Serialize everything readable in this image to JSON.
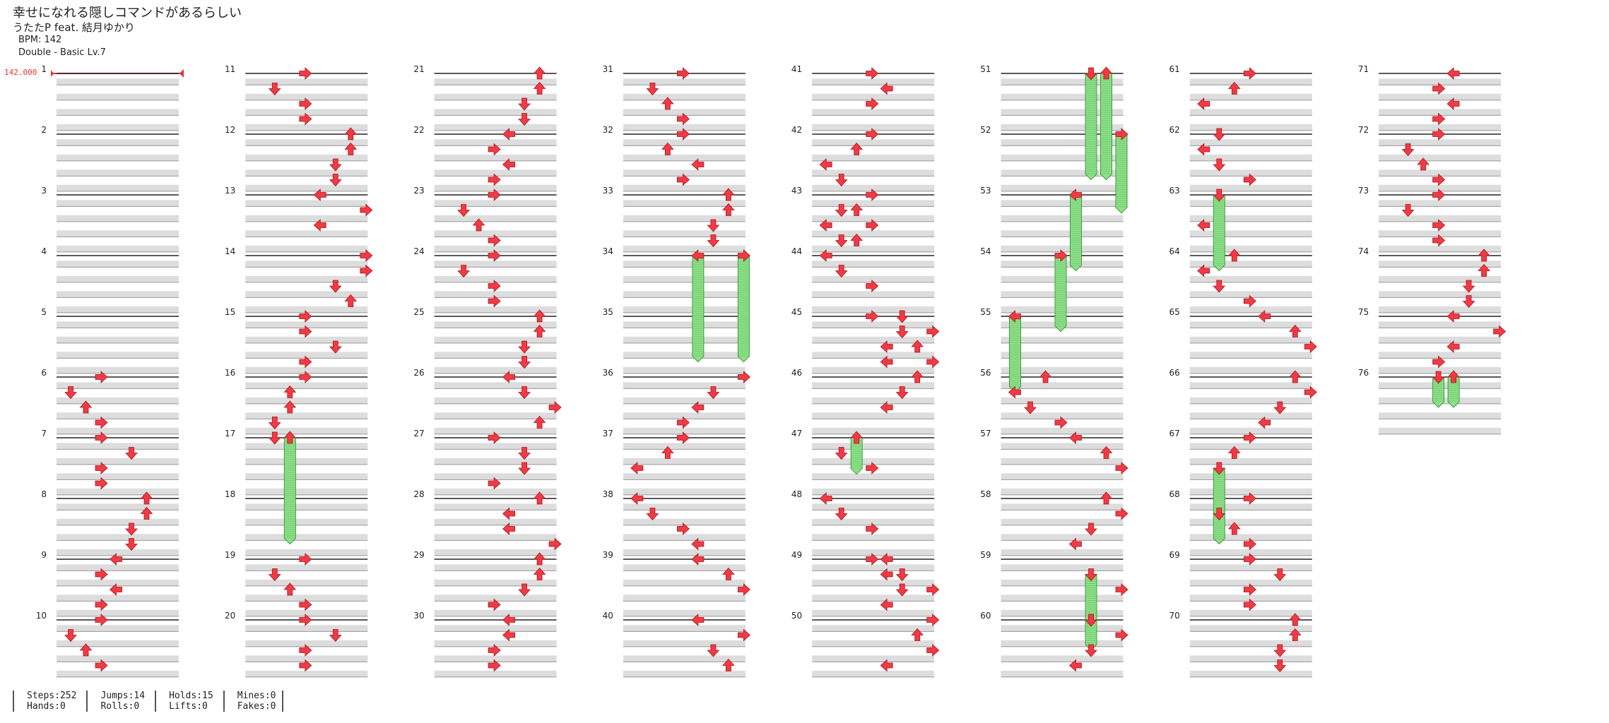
{
  "song": {
    "title": "幸せになれる隠しコマンドがあるらしい",
    "artist": "うたたP feat. 結月ゆかり",
    "bpm": "BPM: 142",
    "difficulty": "Double - Basic  Lv.7"
  },
  "bpm_change": "142.000",
  "stats": [
    [
      "Steps:252",
      "Hands:0"
    ],
    [
      "Jumps:14",
      "Rolls:0"
    ],
    [
      "Holds:15",
      "Lifts:0"
    ],
    [
      "Mines:0",
      "Fakes:0"
    ]
  ],
  "measures": [
    1,
    2,
    3,
    4,
    5,
    6,
    7,
    8,
    9,
    10,
    11,
    12,
    13,
    14,
    15,
    16,
    17,
    18,
    19,
    20,
    21,
    22,
    23,
    24,
    25,
    26,
    27,
    28,
    29,
    30,
    31,
    32,
    33,
    34,
    35,
    36,
    37,
    38,
    39,
    40,
    41,
    42,
    43,
    44,
    45,
    46,
    47,
    48,
    49,
    50,
    51,
    52,
    53,
    54,
    55,
    56,
    57,
    58,
    59,
    60,
    61,
    62,
    63,
    64,
    65,
    66,
    67,
    68,
    69,
    70,
    71,
    72,
    73,
    74,
    75,
    76
  ],
  "colors": {
    "arrow": "#ee3b45",
    "hold": "#8fe08a",
    "bpm": "#e33333"
  },
  "notes": [
    [
      6,
      0,
      2,
      "R"
    ],
    [
      6,
      1,
      0,
      "D"
    ],
    [
      6,
      2,
      1,
      "U"
    ],
    [
      6,
      3,
      2,
      "R"
    ],
    [
      6,
      4,
      2,
      "R"
    ],
    [
      6,
      5,
      4,
      "D"
    ],
    [
      6,
      6,
      2,
      "R"
    ],
    [
      6,
      7,
      2,
      "R"
    ],
    [
      8,
      0,
      5,
      "U"
    ],
    [
      8,
      1,
      5,
      "U"
    ],
    [
      8,
      2,
      4,
      "D"
    ],
    [
      8,
      3,
      4,
      "D"
    ],
    [
      9,
      0,
      3,
      "L"
    ],
    [
      9,
      1,
      2,
      "R"
    ],
    [
      9,
      2,
      3,
      "L"
    ],
    [
      9,
      3,
      2,
      "R"
    ],
    [
      10,
      0,
      2,
      "R"
    ],
    [
      10,
      1,
      0,
      "D"
    ],
    [
      10,
      2,
      1,
      "U"
    ],
    [
      10,
      3,
      2,
      "R"
    ],
    [
      11,
      0,
      3,
      "R"
    ],
    [
      11,
      1,
      1,
      "D"
    ],
    [
      11,
      2,
      3,
      "R"
    ],
    [
      11,
      3,
      3,
      "R"
    ],
    [
      12,
      0,
      6,
      "U"
    ],
    [
      12,
      1,
      6,
      "U"
    ],
    [
      12,
      2,
      5,
      "D"
    ],
    [
      12,
      3,
      5,
      "D"
    ],
    [
      13,
      0,
      4,
      "L"
    ],
    [
      13,
      1,
      7,
      "R"
    ],
    [
      13,
      2,
      4,
      "L"
    ],
    [
      14,
      0,
      7,
      "R"
    ],
    [
      14,
      1,
      7,
      "R"
    ],
    [
      14,
      2,
      5,
      "D"
    ],
    [
      14,
      3,
      6,
      "U"
    ],
    [
      15,
      0,
      3,
      "R"
    ],
    [
      15,
      1,
      3,
      "R"
    ],
    [
      15,
      2,
      5,
      "D"
    ],
    [
      15,
      3,
      3,
      "R"
    ],
    [
      16,
      0,
      3,
      "R"
    ],
    [
      16,
      1,
      2,
      "U"
    ],
    [
      16,
      2,
      2,
      "U"
    ],
    [
      16,
      3,
      1,
      "D"
    ],
    [
      16,
      4,
      1,
      "D"
    ],
    [
      19,
      0,
      3,
      "R"
    ],
    [
      19,
      1,
      1,
      "D"
    ],
    [
      19,
      2,
      2,
      "U"
    ],
    [
      19,
      3,
      3,
      "R"
    ],
    [
      20,
      0,
      3,
      "R"
    ],
    [
      20,
      1,
      5,
      "D"
    ],
    [
      20,
      2,
      3,
      "R"
    ],
    [
      20,
      3,
      3,
      "R"
    ],
    [
      21,
      0,
      6,
      "U"
    ],
    [
      21,
      1,
      6,
      "U"
    ],
    [
      21,
      2,
      5,
      "D"
    ],
    [
      21,
      3,
      5,
      "D"
    ],
    [
      22,
      0,
      4,
      "L"
    ],
    [
      22,
      1,
      3,
      "R"
    ],
    [
      22,
      2,
      4,
      "L"
    ],
    [
      22,
      3,
      3,
      "R"
    ],
    [
      23,
      0,
      3,
      "R"
    ],
    [
      23,
      1,
      1,
      "D"
    ],
    [
      23,
      2,
      2,
      "U"
    ],
    [
      23,
      3,
      3,
      "R"
    ],
    [
      24,
      0,
      3,
      "R"
    ],
    [
      24,
      1,
      1,
      "D"
    ],
    [
      24,
      2,
      3,
      "R"
    ],
    [
      24,
      3,
      3,
      "R"
    ],
    [
      25,
      0,
      6,
      "U"
    ],
    [
      25,
      1,
      6,
      "U"
    ],
    [
      25,
      2,
      5,
      "D"
    ],
    [
      25,
      3,
      5,
      "D"
    ],
    [
      26,
      0,
      4,
      "L"
    ],
    [
      26,
      1,
      5,
      "D"
    ],
    [
      26,
      2,
      7,
      "R"
    ],
    [
      26,
      3,
      6,
      "U"
    ],
    [
      27,
      0,
      3,
      "R"
    ],
    [
      27,
      1,
      5,
      "D"
    ],
    [
      27,
      2,
      5,
      "D"
    ],
    [
      27,
      3,
      3,
      "R"
    ],
    [
      28,
      0,
      6,
      "U"
    ],
    [
      28,
      1,
      4,
      "L"
    ],
    [
      28,
      2,
      4,
      "L"
    ],
    [
      28,
      3,
      7,
      "R"
    ],
    [
      29,
      0,
      6,
      "U"
    ],
    [
      29,
      1,
      6,
      "U"
    ],
    [
      29,
      2,
      5,
      "D"
    ],
    [
      29,
      3,
      3,
      "R"
    ],
    [
      30,
      0,
      4,
      "L"
    ],
    [
      30,
      1,
      4,
      "L"
    ],
    [
      30,
      2,
      3,
      "R"
    ],
    [
      30,
      3,
      3,
      "R"
    ],
    [
      31,
      0,
      3,
      "R"
    ],
    [
      31,
      1,
      1,
      "D"
    ],
    [
      31,
      2,
      2,
      "U"
    ],
    [
      31,
      3,
      3,
      "R"
    ],
    [
      32,
      0,
      3,
      "R"
    ],
    [
      32,
      1,
      2,
      "U"
    ],
    [
      32,
      2,
      4,
      "L"
    ],
    [
      32,
      3,
      3,
      "R"
    ],
    [
      33,
      0,
      6,
      "U"
    ],
    [
      33,
      1,
      6,
      "U"
    ],
    [
      33,
      2,
      5,
      "D"
    ],
    [
      33,
      3,
      5,
      "D"
    ],
    [
      36,
      0,
      7,
      "R"
    ],
    [
      36,
      1,
      5,
      "D"
    ],
    [
      36,
      2,
      4,
      "L"
    ],
    [
      36,
      3,
      3,
      "R"
    ],
    [
      37,
      0,
      3,
      "R"
    ],
    [
      37,
      1,
      2,
      "U"
    ],
    [
      37,
      2,
      0,
      "L"
    ],
    [
      38,
      0,
      0,
      "L"
    ],
    [
      38,
      1,
      1,
      "D"
    ],
    [
      38,
      2,
      3,
      "R"
    ],
    [
      38,
      3,
      4,
      "L"
    ],
    [
      38,
      4,
      4,
      "L"
    ],
    [
      39,
      1,
      6,
      "U"
    ],
    [
      39,
      2,
      7,
      "R"
    ],
    [
      40,
      0,
      4,
      "L"
    ],
    [
      40,
      1,
      7,
      "R"
    ],
    [
      40,
      2,
      5,
      "D"
    ],
    [
      40,
      3,
      6,
      "U"
    ],
    [
      41,
      0,
      3,
      "R"
    ],
    [
      41,
      1,
      4,
      "L"
    ],
    [
      41,
      2,
      3,
      "R"
    ],
    [
      42,
      0,
      3,
      "R"
    ],
    [
      42,
      1,
      2,
      "U"
    ],
    [
      42,
      2,
      0,
      "L"
    ],
    [
      42,
      3,
      1,
      "D"
    ],
    [
      43,
      0,
      3,
      "R"
    ],
    [
      43,
      1,
      1,
      "D"
    ],
    [
      43,
      1,
      2,
      "U"
    ],
    [
      43,
      2,
      0,
      "L"
    ],
    [
      43,
      2,
      3,
      "R"
    ],
    [
      43,
      3,
      1,
      "D"
    ],
    [
      43,
      3,
      2,
      "U"
    ],
    [
      44,
      0,
      0,
      "L"
    ],
    [
      44,
      1,
      1,
      "D"
    ],
    [
      44,
      2,
      3,
      "R"
    ],
    [
      45,
      0,
      3,
      "R"
    ],
    [
      45,
      0,
      5,
      "D"
    ],
    [
      45,
      1,
      5,
      "D"
    ],
    [
      45,
      1,
      7,
      "R"
    ],
    [
      45,
      2,
      4,
      "L"
    ],
    [
      45,
      2,
      6,
      "U"
    ],
    [
      45,
      3,
      4,
      "L"
    ],
    [
      45,
      3,
      7,
      "R"
    ],
    [
      46,
      0,
      6,
      "U"
    ],
    [
      46,
      1,
      5,
      "D"
    ],
    [
      46,
      2,
      4,
      "L"
    ],
    [
      47,
      1,
      1,
      "D"
    ],
    [
      47,
      2,
      3,
      "R"
    ],
    [
      48,
      0,
      0,
      "L"
    ],
    [
      48,
      1,
      1,
      "D"
    ],
    [
      48,
      2,
      3,
      "R"
    ],
    [
      49,
      0,
      3,
      "R"
    ],
    [
      49,
      0,
      4,
      "L"
    ],
    [
      49,
      1,
      4,
      "L"
    ],
    [
      49,
      1,
      5,
      "D"
    ],
    [
      49,
      2,
      5,
      "D"
    ],
    [
      49,
      2,
      7,
      "R"
    ],
    [
      49,
      3,
      4,
      "L"
    ],
    [
      50,
      0,
      7,
      "R"
    ],
    [
      50,
      1,
      6,
      "U"
    ],
    [
      50,
      2,
      7,
      "R"
    ],
    [
      50,
      3,
      4,
      "L"
    ],
    [
      56,
      0,
      2,
      "U"
    ],
    [
      56,
      1,
      0,
      "L"
    ],
    [
      56,
      2,
      1,
      "D"
    ],
    [
      56,
      3,
      3,
      "R"
    ],
    [
      57,
      0,
      4,
      "L"
    ],
    [
      57,
      1,
      6,
      "U"
    ],
    [
      57,
      2,
      7,
      "R"
    ],
    [
      58,
      0,
      6,
      "U"
    ],
    [
      58,
      1,
      7,
      "R"
    ],
    [
      58,
      2,
      5,
      "D"
    ],
    [
      58,
      3,
      4,
      "L"
    ],
    [
      59,
      2,
      7,
      "R"
    ],
    [
      60,
      0,
      5,
      "D"
    ],
    [
      60,
      1,
      7,
      "R"
    ],
    [
      60,
      2,
      5,
      "D"
    ],
    [
      60,
      3,
      4,
      "L"
    ],
    [
      61,
      0,
      3,
      "R"
    ],
    [
      61,
      1,
      2,
      "U"
    ],
    [
      61,
      2,
      0,
      "L"
    ],
    [
      62,
      0,
      1,
      "D"
    ],
    [
      62,
      1,
      0,
      "L"
    ],
    [
      62,
      2,
      1,
      "D"
    ],
    [
      62,
      3,
      3,
      "R"
    ],
    [
      63,
      2,
      0,
      "L"
    ],
    [
      64,
      0,
      2,
      "U"
    ],
    [
      64,
      1,
      0,
      "L"
    ],
    [
      64,
      2,
      1,
      "D"
    ],
    [
      64,
      3,
      3,
      "R"
    ],
    [
      65,
      0,
      4,
      "L"
    ],
    [
      65,
      1,
      6,
      "U"
    ],
    [
      65,
      2,
      7,
      "R"
    ],
    [
      66,
      0,
      6,
      "U"
    ],
    [
      66,
      1,
      7,
      "R"
    ],
    [
      66,
      2,
      5,
      "D"
    ],
    [
      66,
      3,
      4,
      "L"
    ],
    [
      67,
      0,
      3,
      "R"
    ],
    [
      67,
      1,
      2,
      "U"
    ],
    [
      68,
      0,
      3,
      "R"
    ],
    [
      68,
      1,
      1,
      "D"
    ],
    [
      68,
      2,
      2,
      "U"
    ],
    [
      68,
      3,
      3,
      "R"
    ],
    [
      69,
      0,
      3,
      "R"
    ],
    [
      69,
      1,
      5,
      "D"
    ],
    [
      69,
      2,
      3,
      "R"
    ],
    [
      69,
      3,
      3,
      "R"
    ],
    [
      70,
      0,
      6,
      "U"
    ],
    [
      70,
      1,
      6,
      "U"
    ],
    [
      70,
      2,
      5,
      "D"
    ],
    [
      70,
      3,
      5,
      "D"
    ],
    [
      71,
      0,
      4,
      "L"
    ],
    [
      71,
      1,
      3,
      "R"
    ],
    [
      71,
      2,
      4,
      "L"
    ],
    [
      71,
      3,
      3,
      "R"
    ],
    [
      72,
      0,
      3,
      "R"
    ],
    [
      72,
      1,
      1,
      "D"
    ],
    [
      72,
      2,
      2,
      "U"
    ],
    [
      72,
      3,
      3,
      "R"
    ],
    [
      73,
      0,
      3,
      "R"
    ],
    [
      73,
      1,
      1,
      "D"
    ],
    [
      73,
      2,
      3,
      "R"
    ],
    [
      73,
      3,
      3,
      "R"
    ],
    [
      74,
      0,
      6,
      "U"
    ],
    [
      74,
      1,
      6,
      "U"
    ],
    [
      74,
      2,
      5,
      "D"
    ],
    [
      74,
      3,
      5,
      "D"
    ],
    [
      75,
      0,
      4,
      "L"
    ],
    [
      75,
      1,
      7,
      "R"
    ],
    [
      75,
      2,
      4,
      "L"
    ],
    [
      75,
      3,
      3,
      "R"
    ]
  ],
  "holds": [
    [
      17,
      0,
      2,
      "U",
      1.75
    ],
    [
      34,
      0,
      4,
      "L",
      1.75
    ],
    [
      34,
      0,
      7,
      "R",
      1.75
    ],
    [
      47,
      0,
      2,
      "U",
      0.6
    ],
    [
      51,
      0,
      5,
      "D",
      1.75
    ],
    [
      51,
      0,
      6,
      "U",
      1.75
    ],
    [
      52,
      0,
      7,
      "R",
      1.3
    ],
    [
      53,
      0,
      4,
      "L",
      1.25
    ],
    [
      54,
      0,
      3,
      "R",
      1.25
    ],
    [
      55,
      0,
      0,
      "L",
      1.25
    ],
    [
      59,
      1,
      5,
      "D",
      1.25
    ],
    [
      63,
      0,
      1,
      "D",
      1.25
    ],
    [
      68,
      2,
      1,
      "D",
      0.0
    ],
    [
      67,
      2,
      1,
      "D",
      1.25
    ],
    [
      76,
      0,
      3,
      "D",
      0.5
    ],
    [
      76,
      0,
      4,
      "U",
      0.5
    ]
  ]
}
